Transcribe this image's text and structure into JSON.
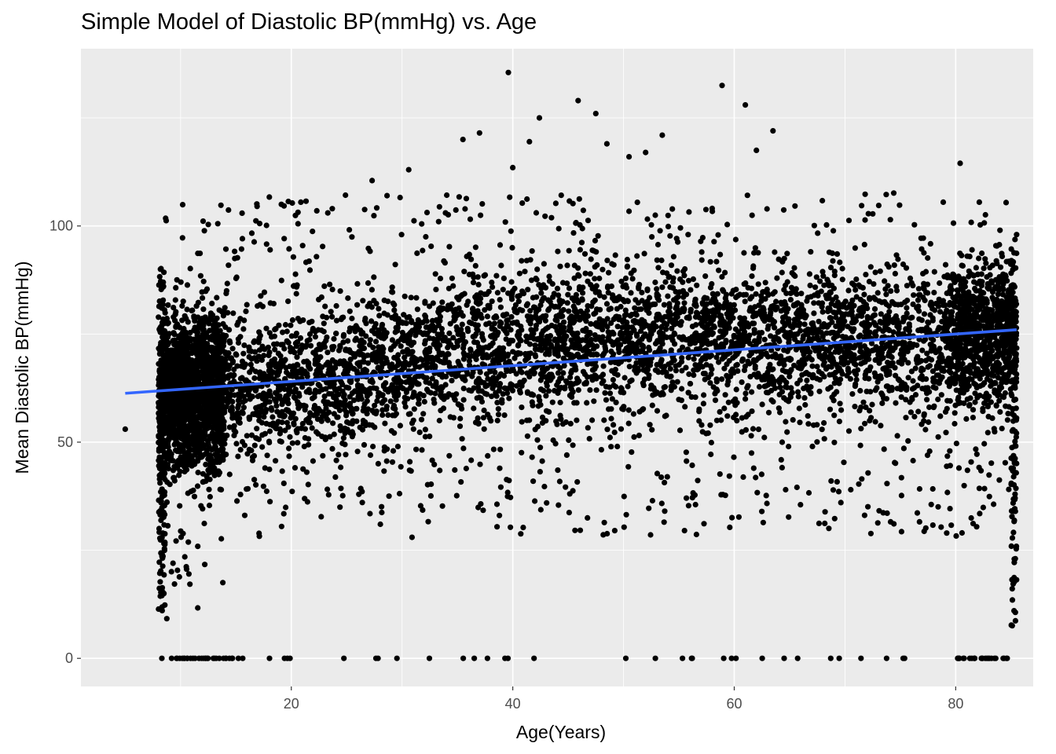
{
  "chart_data": {
    "type": "scatter",
    "title": "Simple Model of Diastolic BP(mmHg) vs. Age",
    "xlabel": "Age(Years)",
    "ylabel": "Mean Diastolic BP(mmHg)",
    "xlim": [
      1,
      87
    ],
    "ylim": [
      -6.5,
      141
    ],
    "x_ticks": [
      20,
      40,
      60,
      80
    ],
    "y_ticks": [
      0,
      50,
      100
    ],
    "x_tick_labels": [
      "20",
      "40",
      "60",
      "80"
    ],
    "y_tick_labels": [
      "0",
      "50",
      "100"
    ],
    "grid": true,
    "legend": "none",
    "colors": {
      "panel": "#ebebeb",
      "grid": "#ffffff",
      "points": "#000000",
      "fit_line": "#3366ff"
    },
    "series": [
      {
        "kind": "points",
        "note_free_points": [
          [
            5,
            53
          ],
          [
            39.6,
            135.5
          ],
          [
            58.9,
            132.5
          ],
          [
            45.9,
            129
          ],
          [
            61,
            128
          ],
          [
            47.5,
            126
          ],
          [
            42.4,
            125
          ],
          [
            37,
            121.5
          ],
          [
            53.5,
            121
          ],
          [
            63.5,
            122
          ],
          [
            35.5,
            120
          ],
          [
            48.5,
            119
          ],
          [
            41.5,
            119.5
          ],
          [
            52,
            117
          ],
          [
            62,
            117.5
          ],
          [
            50.5,
            116
          ],
          [
            80.4,
            114.5
          ],
          [
            30.6,
            113
          ],
          [
            40,
            113.5
          ],
          [
            19.1,
            105
          ],
          [
            22.3,
            103.5
          ],
          [
            23.7,
            104
          ],
          [
            27.3,
            110.5
          ],
          [
            84,
            99
          ],
          [
            85.5,
            98
          ]
        ]
      },
      {
        "kind": "fit_line",
        "x": [
          5,
          85.5
        ],
        "y": [
          61.3,
          76
        ]
      }
    ]
  }
}
